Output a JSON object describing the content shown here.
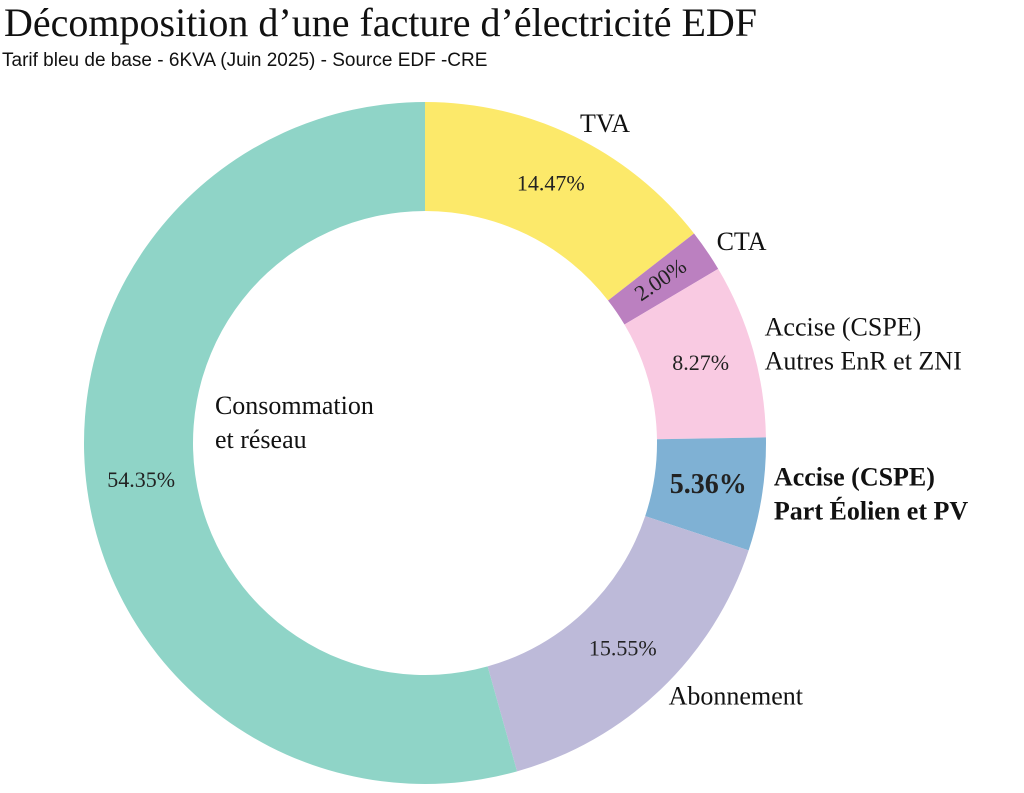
{
  "chart_data": {
    "type": "donut",
    "title": "Décomposition d’une facture d’électricité EDF",
    "subtitle": "Tarif bleu de base - 6KVA (Juin 2025) - Source EDF -CRE",
    "categories": [
      [
        "TVA"
      ],
      [
        "CTA"
      ],
      [
        "Accise (CSPE)",
        "Autres EnR et ZNI"
      ],
      [
        "Accise (CSPE)",
        "Part Éolien et PV"
      ],
      [
        "Abonnement"
      ],
      [
        "Consommation",
        "et réseau"
      ]
    ],
    "values": [
      14.47,
      2.0,
      8.27,
      5.36,
      15.55,
      54.35
    ],
    "value_labels": [
      "14.47%",
      "2.00%",
      "8.27%",
      "5.36%",
      "15.55%",
      "54.35%"
    ],
    "colors": [
      "#fce96a",
      "#bb80c0",
      "#f9cae2",
      "#7fb1d4",
      "#bdbad9",
      "#8fd4c7"
    ]
  }
}
